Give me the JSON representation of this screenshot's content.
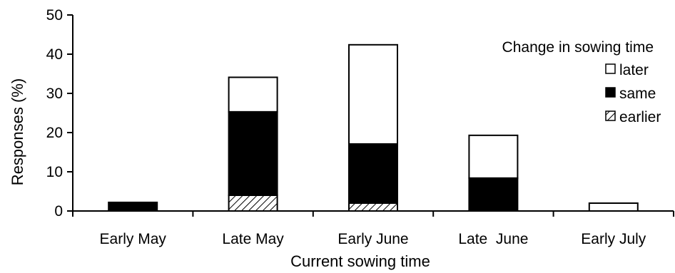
{
  "chart_data": {
    "type": "bar",
    "stacked": true,
    "title": "",
    "xlabel": "Current sowing time",
    "ylabel": "Responses (%)",
    "ylim": [
      0,
      50
    ],
    "yticks": [
      0,
      10,
      20,
      30,
      40,
      50
    ],
    "categories": [
      "Early May",
      "Late May",
      "Early June",
      "Late  June",
      "Early July"
    ],
    "series": [
      {
        "name": "earlier",
        "fill": "hatch",
        "values": [
          0,
          4,
          2,
          0,
          0
        ]
      },
      {
        "name": "same",
        "fill": "#000000",
        "values": [
          2.2,
          21.3,
          15.1,
          8.4,
          0
        ]
      },
      {
        "name": "later",
        "fill": "#ffffff",
        "values": [
          0,
          8.8,
          25.3,
          10.9,
          2
        ]
      }
    ],
    "legend": {
      "title": "Change in sowing time",
      "position": "top-right",
      "order": [
        "later",
        "same",
        "earlier"
      ]
    },
    "grid": false
  }
}
